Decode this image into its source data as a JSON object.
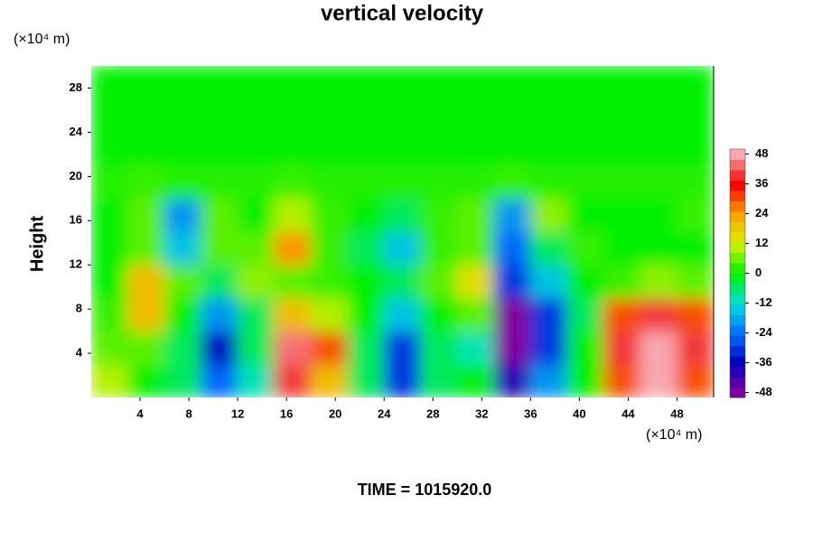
{
  "chart_data": {
    "type": "contour",
    "title": "vertical velocity",
    "y_label": "Height",
    "y_unit": "(×10⁴ m)",
    "x_unit": "(×10⁴ m)",
    "annotation": "TIME = 1015920.0",
    "xlim": [
      0,
      51
    ],
    "ylim": [
      0,
      30
    ],
    "xticks": [
      4,
      8,
      12,
      16,
      20,
      24,
      28,
      32,
      36,
      40,
      44,
      48
    ],
    "yticks": [
      4,
      8,
      12,
      16,
      20,
      24,
      28
    ],
    "x": [
      1.5,
      4.5,
      7.5,
      10.5,
      13.5,
      16.5,
      19.5,
      22.5,
      25.5,
      28.5,
      31.5,
      34.5,
      37.5,
      40.5,
      43.5,
      46.5,
      49.5
    ],
    "y": [
      1.5,
      4.5,
      7.5,
      10.5,
      13.5,
      16.5,
      19.5,
      22.5,
      25.5,
      28.5
    ],
    "z": [
      [
        10,
        0,
        -5,
        -25,
        -10,
        40,
        20,
        -5,
        -30,
        -5,
        0,
        -40,
        -20,
        0,
        30,
        48,
        30
      ],
      [
        5,
        5,
        -5,
        -36,
        -5,
        44,
        30,
        -5,
        -30,
        -5,
        -10,
        -48,
        -30,
        0,
        40,
        48,
        40
      ],
      [
        3,
        20,
        0,
        -20,
        -5,
        20,
        10,
        0,
        -15,
        0,
        5,
        -48,
        -30,
        -5,
        30,
        40,
        30
      ],
      [
        0,
        20,
        5,
        -5,
        8,
        5,
        3,
        0,
        -5,
        5,
        15,
        -30,
        -15,
        0,
        3,
        8,
        5
      ],
      [
        0,
        5,
        -15,
        5,
        5,
        25,
        3,
        -5,
        -15,
        3,
        5,
        -25,
        -5,
        3,
        0,
        0,
        0
      ],
      [
        0,
        5,
        -20,
        5,
        0,
        10,
        3,
        0,
        -5,
        3,
        5,
        -20,
        8,
        0,
        0,
        0,
        3
      ],
      [
        2,
        3,
        2,
        2,
        2,
        3,
        2,
        2,
        2,
        2,
        2,
        3,
        2,
        2,
        2,
        2,
        2
      ],
      [
        0,
        0,
        0,
        0,
        0,
        0,
        0,
        0,
        0,
        0,
        0,
        0,
        0,
        0,
        0,
        0,
        0
      ],
      [
        0,
        0,
        0,
        0,
        0,
        0,
        0,
        0,
        0,
        0,
        0,
        0,
        0,
        0,
        0,
        0,
        0
      ],
      [
        0,
        0,
        0,
        0,
        0,
        0,
        0,
        0,
        0,
        0,
        0,
        0,
        0,
        0,
        0,
        0,
        0
      ]
    ],
    "clim": [
      -50,
      50
    ],
    "zticks": [
      48,
      36,
      24,
      12,
      0,
      -12,
      -24,
      -36,
      -48
    ],
    "zcolors": [
      "#f8a8b0",
      "#f00000",
      "#ffa000",
      "#d8f000",
      "#00f000",
      "#00e0d8",
      "#0070ff",
      "#0000c0",
      "#8000a0"
    ]
  }
}
